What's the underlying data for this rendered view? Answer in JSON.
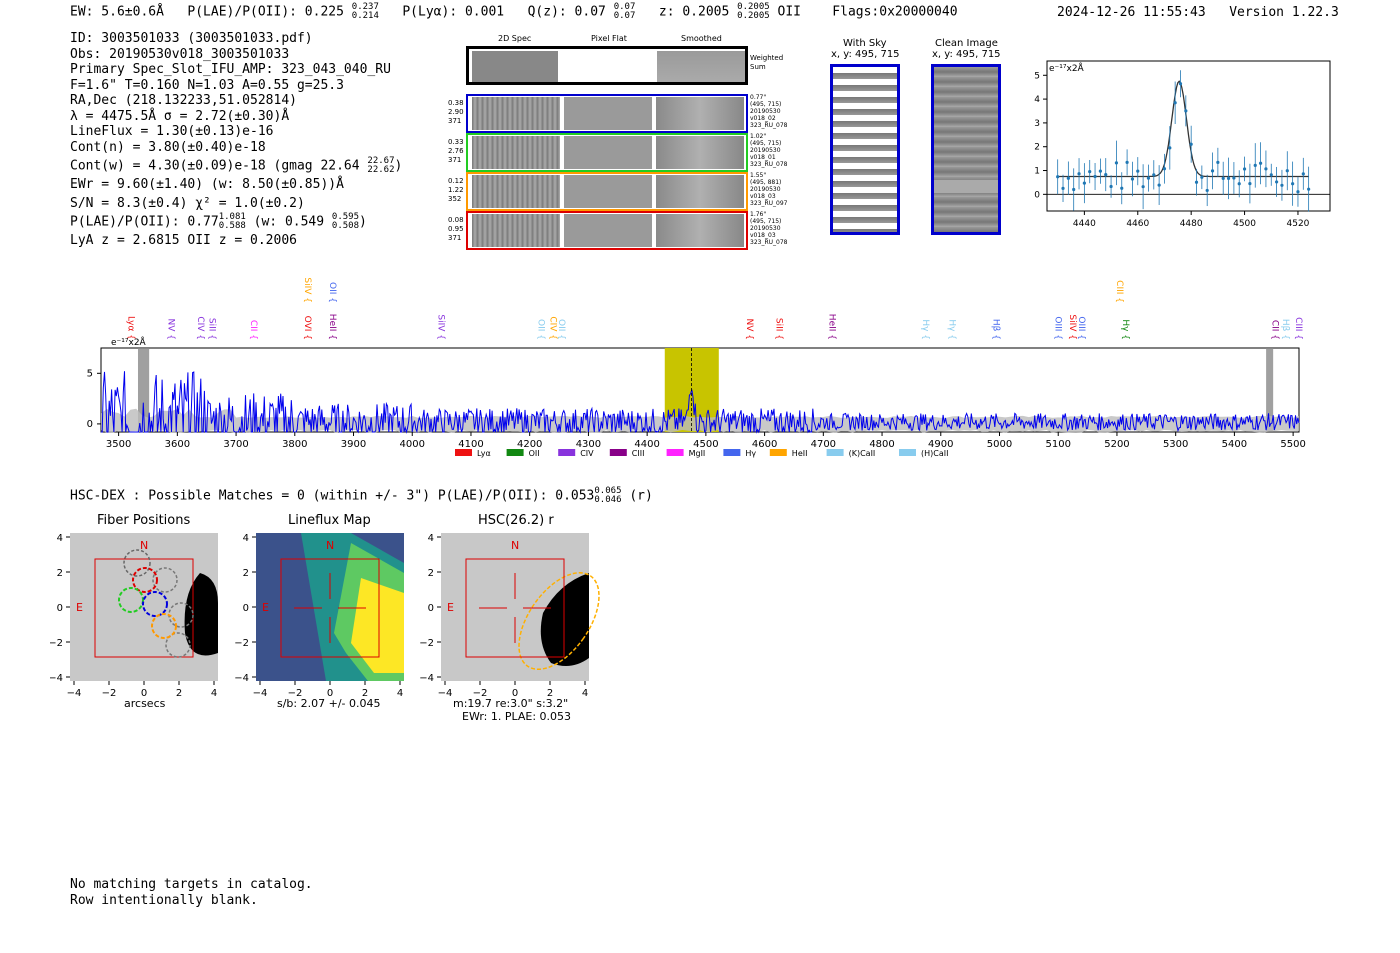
{
  "header": {
    "ew": "EW: 5.6±0.6Å",
    "plae_label": "P(LAE)/P(OII): 0.225",
    "plae_hi": "0.237",
    "plae_lo": "0.214",
    "plya": "P(Lyα): 0.001",
    "qz_label": "Q(z): 0.07",
    "qz_hi": "0.07",
    "qz_lo": "0.07",
    "z_label": "z: 0.2005",
    "z_hi": "0.2005",
    "z_lo": "0.2005",
    "z_line": "OII",
    "flags": "Flags:0x20000040",
    "datetime": "2024-12-26 11:55:43",
    "version": "Version 1.22.3"
  },
  "info": {
    "id": "ID: 3003501033 (3003501033.pdf)",
    "obs": "Obs: 20190530v018_3003501033",
    "primary": "Primary Spec_Slot_IFU_AMP: 323_043_040_RU",
    "params": "F=1.6\"  T=0.160  N=1.03  A=0.55  g=25.3",
    "radec": "RA,Dec (218.132233,51.052814)",
    "lambda": "λ = 4475.5Å   σ = 2.72(±0.30)Å",
    "lineflux": "LineFlux = 1.30(±0.13)e-16",
    "contn": "Cont(n) = 3.80(±0.40)e-18",
    "contw": "Cont(w) = 4.30(±0.09)e-18 (gmag 22.64",
    "contw_hi": "22.67",
    "contw_lo": "22.62",
    "ewr": "EWr = 9.60(±1.40) (w: 8.50(±0.85))Å",
    "sn": "S/N = 8.3(±0.4)  χ² = 1.0(±0.2)",
    "plae": "P(LAE)/P(OII): 0.77",
    "plae_hi": "1.081",
    "plae_lo": "0.588",
    "plae_w": "(w: 0.549",
    "plae_w_hi": "0.595",
    "plae_w_lo": "0.508",
    "lyaz": "LyA z = 2.6815  OII z = 0.2006"
  },
  "cutouts": {
    "col_2dspec": "2D Spec",
    "col_pixelflat": "Pixel Flat",
    "col_smoothed": "Smoothed",
    "weighted_sum": "Weighted Sum",
    "rows": [
      {
        "left": [
          "0.38",
          "2.90",
          "371"
        ],
        "right": [
          "0.77\"",
          "(495, 715)",
          "20190530",
          "v018_02",
          "323_RU_078"
        ],
        "color": "#0000cc"
      },
      {
        "left": [
          "0.33",
          "2.76",
          "371"
        ],
        "right": [
          "1.02\"",
          "(495, 715)",
          "20190530",
          "v018_01",
          "323_RU_078"
        ],
        "color": "#22cc22"
      },
      {
        "left": [
          "0.12",
          "1.22",
          "352"
        ],
        "right": [
          "1.55\"",
          "(495, 881)",
          "20190530",
          "v018_03",
          "323_RU_097"
        ],
        "color": "#ff9900"
      },
      {
        "left": [
          "0.08",
          "0.95",
          "371"
        ],
        "right": [
          "1.76\"",
          "(495, 715)",
          "20190530",
          "v018_03",
          "323_RU_078"
        ],
        "color": "#dd0000"
      }
    ],
    "with_sky_title": "With Sky",
    "with_sky_xy": "x, y: 495, 715",
    "clean_title": "Clean Image",
    "clean_xy": "x, y: 495, 715"
  },
  "zoom_chart": {
    "unit": "e⁻¹⁷x2Å",
    "xticks": [
      "4440",
      "4460",
      "4480",
      "4500",
      "4520"
    ],
    "yticks": [
      "0",
      "1",
      "2",
      "3",
      "4",
      "5"
    ]
  },
  "chart_data": {
    "type": "line",
    "title": "",
    "ylabel": "e⁻¹⁷x2Å",
    "xlabel": "",
    "xlim": [
      3470,
      5510
    ],
    "ylim": [
      -0.8,
      7.5
    ],
    "xticks": [
      "3500",
      "3600",
      "3700",
      "3800",
      "3900",
      "4000",
      "4100",
      "4200",
      "4300",
      "4400",
      "4500",
      "4600",
      "4700",
      "4800",
      "4900",
      "5000",
      "5100",
      "5200",
      "5300",
      "5400",
      "5500"
    ],
    "yticks": [
      "0",
      "5"
    ],
    "highlight_range": [
      4430,
      4522
    ],
    "emission_line": 4475.5,
    "legend": [
      {
        "name": "Lyα",
        "color": "#ee1111"
      },
      {
        "name": "OII",
        "color": "#118811"
      },
      {
        "name": "CIV",
        "color": "#8833dd"
      },
      {
        "name": "CIII",
        "color": "#880088"
      },
      {
        "name": "MgII",
        "color": "#ff22ff"
      },
      {
        "name": "Hγ",
        "color": "#4466ee"
      },
      {
        "name": "HeII",
        "color": "#ffa500"
      },
      {
        "name": "(K)CaII",
        "color": "#88ccee"
      },
      {
        "name": "(H)CaII",
        "color": "#88ccee"
      }
    ],
    "line_labels": [
      {
        "name": "Lyα",
        "color": "#ee1111",
        "x": 3512
      },
      {
        "name": "NV",
        "color": "#8833dd",
        "x": 3580
      },
      {
        "name": "CIV",
        "color": "#8833dd",
        "x": 3630
      },
      {
        "name": "SiII",
        "color": "#8833dd",
        "x": 3650
      },
      {
        "name": "CII",
        "color": "#ff22ff",
        "x": 3720
      },
      {
        "name": "SiIV",
        "color": "#ffa500",
        "x": 3812,
        "high": true
      },
      {
        "name": "OVI",
        "color": "#ee1111",
        "x": 3812
      },
      {
        "name": "OII",
        "color": "#4466ee",
        "x": 3855,
        "high": true
      },
      {
        "name": "HeII",
        "color": "#880088",
        "x": 3855
      },
      {
        "name": "SiIV",
        "color": "#8833dd",
        "x": 4040
      },
      {
        "name": "OII",
        "color": "#88ccee",
        "x": 4210
      },
      {
        "name": "CIV",
        "color": "#ffa500",
        "x": 4230
      },
      {
        "name": "OII",
        "color": "#88ccee",
        "x": 4245
      },
      {
        "name": "NV",
        "color": "#ee1111",
        "x": 4565
      },
      {
        "name": "SiII",
        "color": "#ee1111",
        "x": 4615
      },
      {
        "name": "HeII",
        "color": "#880088",
        "x": 4705
      },
      {
        "name": "Hγ",
        "color": "#88ccee",
        "x": 4865
      },
      {
        "name": "Hγ",
        "color": "#88ccee",
        "x": 4910
      },
      {
        "name": "Hβ",
        "color": "#4466ee",
        "x": 4985
      },
      {
        "name": "OIII",
        "color": "#4466ee",
        "x": 5090
      },
      {
        "name": "SiIV",
        "color": "#ee1111",
        "x": 5115
      },
      {
        "name": "OIII",
        "color": "#4466ee",
        "x": 5130
      },
      {
        "name": "CIII",
        "color": "#ffa500",
        "x": 5195,
        "high": true
      },
      {
        "name": "Hγ",
        "color": "#118811",
        "x": 5205
      },
      {
        "name": "CII",
        "color": "#880088",
        "x": 5460
      },
      {
        "name": "Hβ",
        "color": "#88ccee",
        "x": 5478
      },
      {
        "name": "CIII",
        "color": "#8833dd",
        "x": 5500
      }
    ]
  },
  "hsc": {
    "summary": "HSC-DEX : Possible Matches = 0 (within +/- 3\")  P(LAE)/P(OII): 0.053",
    "summary_hi": "0.065",
    "summary_lo": "0.046",
    "summary_band": "(r)",
    "fiber_title": "Fiber Positions",
    "lineflux_title": "Lineflux Map",
    "hsc_title": "HSC(26.2) r",
    "fiber_xlabel": "arcsecs",
    "lineflux_xlabel": "s/b: 2.07 +/- 0.045",
    "hsc_xlabel1": "m:19.7  re:3.0\"  s:3.2\"",
    "hsc_xlabel2": "EWr: 1. PLAE: 0.053",
    "north": "N",
    "east": "E",
    "ticks": [
      "−4",
      "−2",
      "0",
      "2",
      "4"
    ],
    "yticks": [
      "4",
      "2",
      "0",
      "−2",
      "−4"
    ]
  },
  "footer": {
    "line1": "No matching targets in catalog.",
    "line2": "Row intentionally blank."
  }
}
